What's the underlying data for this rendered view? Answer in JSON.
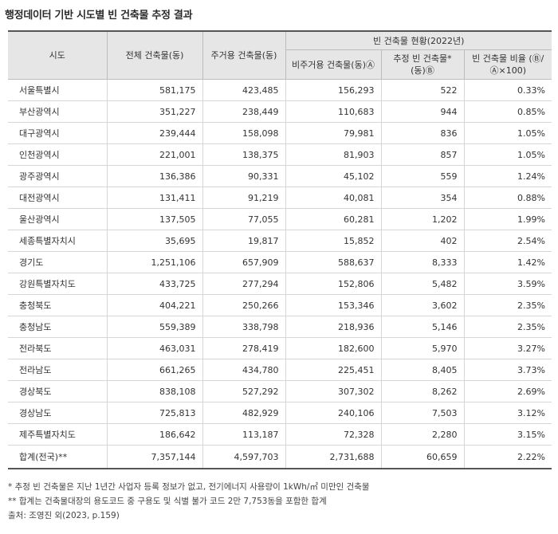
{
  "title": "행정데이터 기반 시도별 빈 건축물 추정 결과",
  "table": {
    "headers": {
      "region": "시도",
      "total": "전체 건축물(동)",
      "residential": "주거용 건축물(동)",
      "vacant_group": "빈 건축물 현황(2022년)",
      "nonres": "비주거용 건축물(동)Ⓐ",
      "est_vacant": "추정 빈 건축물* (동)Ⓑ",
      "ratio": "빈 건축물 비율 (Ⓑ/Ⓐ×100)"
    },
    "rows": [
      [
        "서울특별시",
        "581,175",
        "423,485",
        "156,293",
        "522",
        "0.33%"
      ],
      [
        "부산광역시",
        "351,227",
        "238,449",
        "110,683",
        "944",
        "0.85%"
      ],
      [
        "대구광역시",
        "239,444",
        "158,098",
        "79,981",
        "836",
        "1.05%"
      ],
      [
        "인천광역시",
        "221,001",
        "138,375",
        "81,903",
        "857",
        "1.05%"
      ],
      [
        "광주광역시",
        "136,386",
        "90,331",
        "45,102",
        "559",
        "1.24%"
      ],
      [
        "대전광역시",
        "131,411",
        "91,219",
        "40,081",
        "354",
        "0.88%"
      ],
      [
        "울산광역시",
        "137,505",
        "77,055",
        "60,281",
        "1,202",
        "1.99%"
      ],
      [
        "세종특별자치시",
        "35,695",
        "19,817",
        "15,852",
        "402",
        "2.54%"
      ],
      [
        "경기도",
        "1,251,106",
        "657,909",
        "588,637",
        "8,333",
        "1.42%"
      ],
      [
        "강원특별자치도",
        "433,725",
        "277,294",
        "152,806",
        "5,482",
        "3.59%"
      ],
      [
        "충청북도",
        "404,221",
        "250,266",
        "153,346",
        "3,602",
        "2.35%"
      ],
      [
        "충청남도",
        "559,389",
        "338,798",
        "218,936",
        "5,146",
        "2.35%"
      ],
      [
        "전라북도",
        "463,031",
        "278,419",
        "182,600",
        "5,970",
        "3.27%"
      ],
      [
        "전라남도",
        "661,265",
        "434,780",
        "225,451",
        "8,405",
        "3.73%"
      ],
      [
        "경상북도",
        "838,108",
        "527,292",
        "307,302",
        "8,262",
        "2.69%"
      ],
      [
        "경상남도",
        "725,813",
        "482,929",
        "240,106",
        "7,503",
        "3.12%"
      ],
      [
        "제주특별자치도",
        "186,642",
        "113,187",
        "72,328",
        "2,280",
        "3.15%"
      ]
    ],
    "total_row": [
      "합계(전국)**",
      "7,357,144",
      "4,597,703",
      "2,731,688",
      "60,659",
      "2.22%"
    ]
  },
  "notes": [
    "* 추정 빈 건축물은 지난 1년간 사업자 등록 정보가 없고, 전기에너지 사용량이 1kWh/㎡ 미만인 건축물",
    "** 합계는 건축물대장의 용도코드 중 구용도 및 식별 불가 코드 2만 7,753동을 포함한 합계",
    "출처: 조영진 외(2023, p.159)"
  ]
}
